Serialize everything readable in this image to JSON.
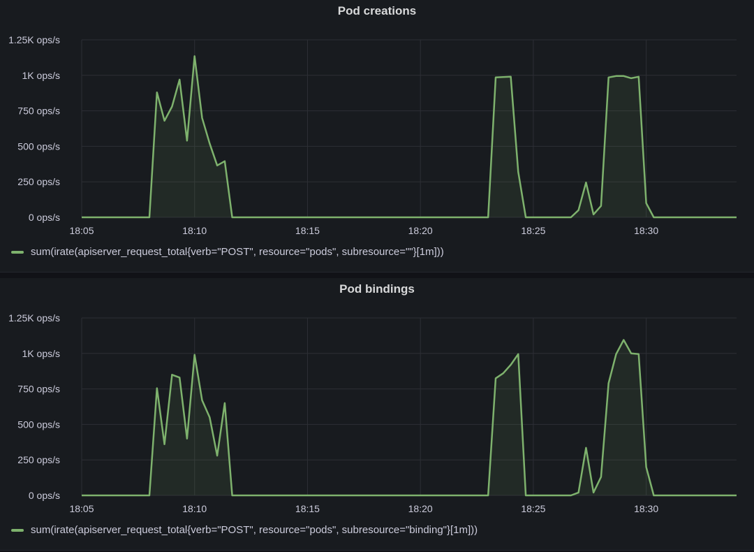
{
  "theme": {
    "line_color": "#7eb26d",
    "fill_color": "rgba(126,178,109,0.10)",
    "background": "#181b1f",
    "grid": "#2d2f35"
  },
  "chart_data": [
    {
      "type": "area",
      "title": "Pod creations",
      "legend": "sum(irate(apiserver_request_total{verb=\"POST\", resource=\"pods\", subresource=\"\"}[1m]))",
      "legend_placement": "bottom-left",
      "grid": true,
      "x_unit": "minutes",
      "xlim": [
        "18:05",
        "18:34"
      ],
      "x_ticks": [
        "18:05",
        "18:10",
        "18:15",
        "18:20",
        "18:25",
        "18:30"
      ],
      "ylim": [
        0,
        1250
      ],
      "y_ticks": [
        "0 ops/s",
        "250 ops/s",
        "500 ops/s",
        "750 ops/s",
        "1K ops/s",
        "1.25K ops/s"
      ],
      "y_tick_values": [
        0,
        250,
        500,
        750,
        1000,
        1250
      ],
      "series": [
        {
          "x": [
            "18:05",
            "18:08",
            "18:08:20",
            "18:08:40",
            "18:09",
            "18:09:20",
            "18:09:40",
            "18:10",
            "18:10:20",
            "18:10:40",
            "18:11",
            "18:11:20",
            "18:11:40",
            "18:23",
            "18:23:20",
            "18:24",
            "18:24:20",
            "18:24:40",
            "18:26:40",
            "18:27",
            "18:27:20",
            "18:27:40",
            "18:28",
            "18:28:20",
            "18:28:40",
            "18:29",
            "18:29:20",
            "18:29:40",
            "18:30",
            "18:30:20",
            "18:30:40",
            "18:34"
          ],
          "values": [
            0,
            0,
            880,
            680,
            780,
            970,
            540,
            1135,
            700,
            520,
            365,
            395,
            0,
            0,
            985,
            990,
            320,
            0,
            0,
            50,
            245,
            20,
            80,
            985,
            995,
            995,
            980,
            990,
            100,
            0,
            0,
            0
          ]
        }
      ]
    },
    {
      "type": "area",
      "title": "Pod bindings",
      "legend": "sum(irate(apiserver_request_total{verb=\"POST\", resource=\"pods\", subresource=\"binding\"}[1m]))",
      "legend_placement": "bottom-left",
      "grid": true,
      "x_unit": "minutes",
      "xlim": [
        "18:05",
        "18:34"
      ],
      "x_ticks": [
        "18:05",
        "18:10",
        "18:15",
        "18:20",
        "18:25",
        "18:30"
      ],
      "ylim": [
        0,
        1250
      ],
      "y_ticks": [
        "0 ops/s",
        "250 ops/s",
        "500 ops/s",
        "750 ops/s",
        "1K ops/s",
        "1.25K ops/s"
      ],
      "y_tick_values": [
        0,
        250,
        500,
        750,
        1000,
        1250
      ],
      "series": [
        {
          "x": [
            "18:05",
            "18:08",
            "18:08:20",
            "18:08:40",
            "18:09",
            "18:09:20",
            "18:09:40",
            "18:10",
            "18:10:20",
            "18:10:40",
            "18:11",
            "18:11:20",
            "18:11:40",
            "18:23",
            "18:23:20",
            "18:23:40",
            "18:24",
            "18:24:20",
            "18:24:40",
            "18:26:40",
            "18:27",
            "18:27:20",
            "18:27:40",
            "18:28",
            "18:28:20",
            "18:28:40",
            "18:29",
            "18:29:20",
            "18:29:40",
            "18:30",
            "18:30:20",
            "18:34"
          ],
          "values": [
            0,
            0,
            755,
            360,
            850,
            830,
            400,
            990,
            670,
            550,
            280,
            650,
            0,
            0,
            825,
            860,
            920,
            995,
            0,
            0,
            20,
            335,
            20,
            130,
            790,
            995,
            1095,
            1000,
            995,
            200,
            0,
            0
          ]
        }
      ]
    }
  ]
}
